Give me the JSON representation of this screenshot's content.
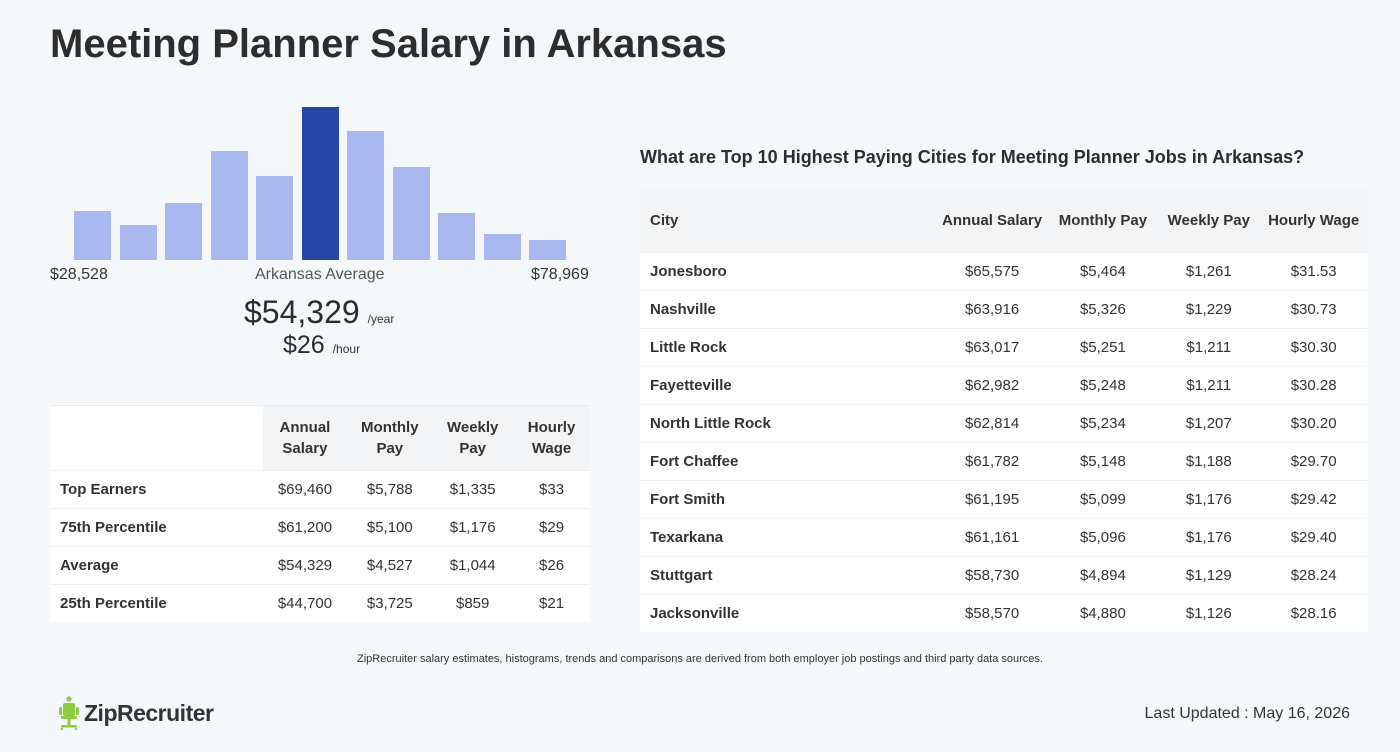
{
  "page": {
    "title": "Meeting Planner Salary in Arkansas"
  },
  "histogram": {
    "min_label": "$28,528",
    "max_label": "$78,969",
    "center_label": "Arkansas Average",
    "annual": "$54,329",
    "annual_unit": "/year",
    "hourly": "$26",
    "hourly_unit": "/hour",
    "bar_color": "#a9b9ef",
    "highlight_color": "#2647a6",
    "bars": [
      0.32,
      0.23,
      0.37,
      0.71,
      0.55,
      1.0,
      0.84,
      0.61,
      0.31,
      0.17,
      0.13
    ],
    "highlight_index": 5
  },
  "summary_table": {
    "headers": [
      "Annual Salary",
      "Monthly Pay",
      "Weekly Pay",
      "Hourly Wage"
    ],
    "rows": [
      {
        "label": "Top Earners",
        "annual": "$69,460",
        "monthly": "$5,788",
        "weekly": "$1,335",
        "hourly": "$33"
      },
      {
        "label": "75th Percentile",
        "annual": "$61,200",
        "monthly": "$5,100",
        "weekly": "$1,176",
        "hourly": "$29"
      },
      {
        "label": "Average",
        "annual": "$54,329",
        "monthly": "$4,527",
        "weekly": "$1,044",
        "hourly": "$26"
      },
      {
        "label": "25th Percentile",
        "annual": "$44,700",
        "monthly": "$3,725",
        "weekly": "$859",
        "hourly": "$21"
      }
    ]
  },
  "cities": {
    "title": "What are Top 10 Highest Paying Cities for Meeting Planner Jobs in Arkansas?",
    "headers": [
      "City",
      "Annual Salary",
      "Monthly Pay",
      "Weekly Pay",
      "Hourly Wage"
    ],
    "rows": [
      {
        "city": "Jonesboro",
        "annual": "$65,575",
        "monthly": "$5,464",
        "weekly": "$1,261",
        "hourly": "$31.53"
      },
      {
        "city": "Nashville",
        "annual": "$63,916",
        "monthly": "$5,326",
        "weekly": "$1,229",
        "hourly": "$30.73"
      },
      {
        "city": "Little Rock",
        "annual": "$63,017",
        "monthly": "$5,251",
        "weekly": "$1,211",
        "hourly": "$30.30"
      },
      {
        "city": "Fayetteville",
        "annual": "$62,982",
        "monthly": "$5,248",
        "weekly": "$1,211",
        "hourly": "$30.28"
      },
      {
        "city": "North Little Rock",
        "annual": "$62,814",
        "monthly": "$5,234",
        "weekly": "$1,207",
        "hourly": "$30.20"
      },
      {
        "city": "Fort Chaffee",
        "annual": "$61,782",
        "monthly": "$5,148",
        "weekly": "$1,188",
        "hourly": "$29.70"
      },
      {
        "city": "Fort Smith",
        "annual": "$61,195",
        "monthly": "$5,099",
        "weekly": "$1,176",
        "hourly": "$29.42"
      },
      {
        "city": "Texarkana",
        "annual": "$61,161",
        "monthly": "$5,096",
        "weekly": "$1,176",
        "hourly": "$29.40"
      },
      {
        "city": "Stuttgart",
        "annual": "$58,730",
        "monthly": "$4,894",
        "weekly": "$1,129",
        "hourly": "$28.24"
      },
      {
        "city": "Jacksonville",
        "annual": "$58,570",
        "monthly": "$4,880",
        "weekly": "$1,126",
        "hourly": "$28.16"
      }
    ]
  },
  "footer": {
    "disclaimer": "ZipRecruiter salary estimates, histograms, trends and comparisons are derived from both employer job postings and third party data sources.",
    "logo_text": "ZipRecruiter",
    "logo_icon": "chair-icon",
    "logo_color": "#8ccd40",
    "last_updated": "Last Updated : May 16, 2026"
  }
}
